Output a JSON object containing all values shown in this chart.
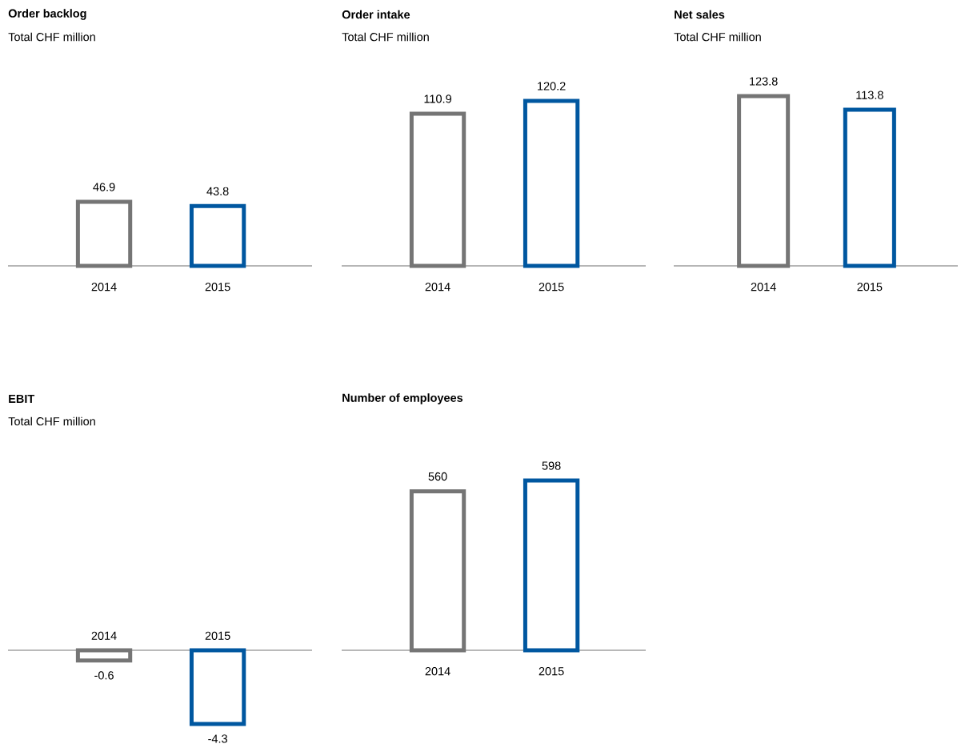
{
  "chart_data": [
    {
      "type": "bar",
      "title": "Order backlog",
      "subtitle": "Total CHF million",
      "categories": [
        "2014",
        "2015"
      ],
      "values": [
        46.9,
        43.8
      ],
      "colors": [
        "#757575",
        "#0057a0"
      ],
      "data_labels": true
    },
    {
      "type": "bar",
      "title": "Order intake",
      "subtitle": "Total CHF million",
      "categories": [
        "2014",
        "2015"
      ],
      "values": [
        110.9,
        120.2
      ],
      "colors": [
        "#757575",
        "#0057a0"
      ],
      "data_labels": true
    },
    {
      "type": "bar",
      "title": "Net sales",
      "subtitle": "Total CHF million",
      "categories": [
        "2014",
        "2015"
      ],
      "values": [
        123.8,
        113.8
      ],
      "colors": [
        "#757575",
        "#0057a0"
      ],
      "data_labels": true
    },
    {
      "type": "bar",
      "title": "EBIT",
      "subtitle": "Total CHF million",
      "categories": [
        "2014",
        "2015"
      ],
      "values": [
        -0.6,
        -4.3
      ],
      "colors": [
        "#757575",
        "#0057a0"
      ],
      "data_labels": true
    },
    {
      "type": "bar",
      "title": "Number of employees",
      "categories": [
        "2014",
        "2015"
      ],
      "values": [
        560,
        598
      ],
      "colors": [
        "#757575",
        "#0057a0"
      ],
      "data_labels": true
    }
  ]
}
